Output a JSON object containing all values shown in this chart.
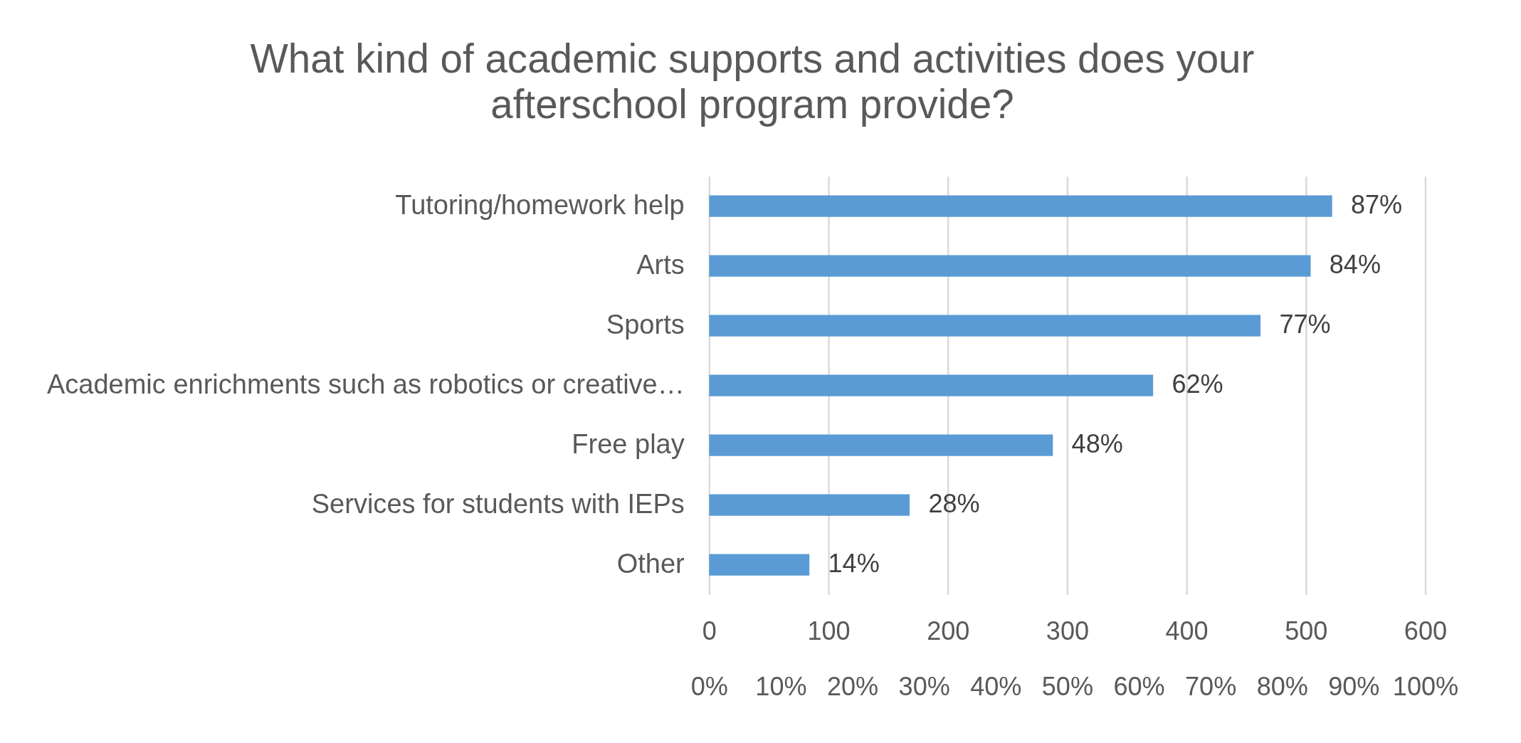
{
  "chart_data": {
    "type": "bar",
    "orientation": "horizontal",
    "title": "What kind of academic supports and activities does your afterschool program provide?",
    "categories": [
      "Tutoring/homework help",
      "Arts",
      "Sports",
      "Academic enrichments such as robotics or creative…",
      "Free play",
      "Services for students with IEPs",
      "Other"
    ],
    "series": [
      {
        "values": [
          87,
          84,
          77,
          62,
          48,
          28,
          14
        ],
        "value_labels": [
          "87%",
          "84%",
          "77%",
          "62%",
          "48%",
          "28%",
          "14%"
        ],
        "color": "#5b9bd5",
        "axis": "x2"
      }
    ],
    "xlim": [
      0,
      600
    ],
    "xticks": [
      0,
      100,
      200,
      300,
      400,
      500,
      600
    ],
    "x2lim": [
      0,
      100
    ],
    "x2ticks": [
      {
        "value": 0,
        "label": "0%"
      },
      {
        "value": 10,
        "label": "10%"
      },
      {
        "value": 20,
        "label": "20%"
      },
      {
        "value": 30,
        "label": "30%"
      },
      {
        "value": 40,
        "label": "40%"
      },
      {
        "value": 50,
        "label": "50%"
      },
      {
        "value": 60,
        "label": "60%"
      },
      {
        "value": 70,
        "label": "70%"
      },
      {
        "value": 80,
        "label": "80%"
      },
      {
        "value": 90,
        "label": "90%"
      },
      {
        "value": 100,
        "label": "100%"
      }
    ],
    "grid": "x"
  }
}
